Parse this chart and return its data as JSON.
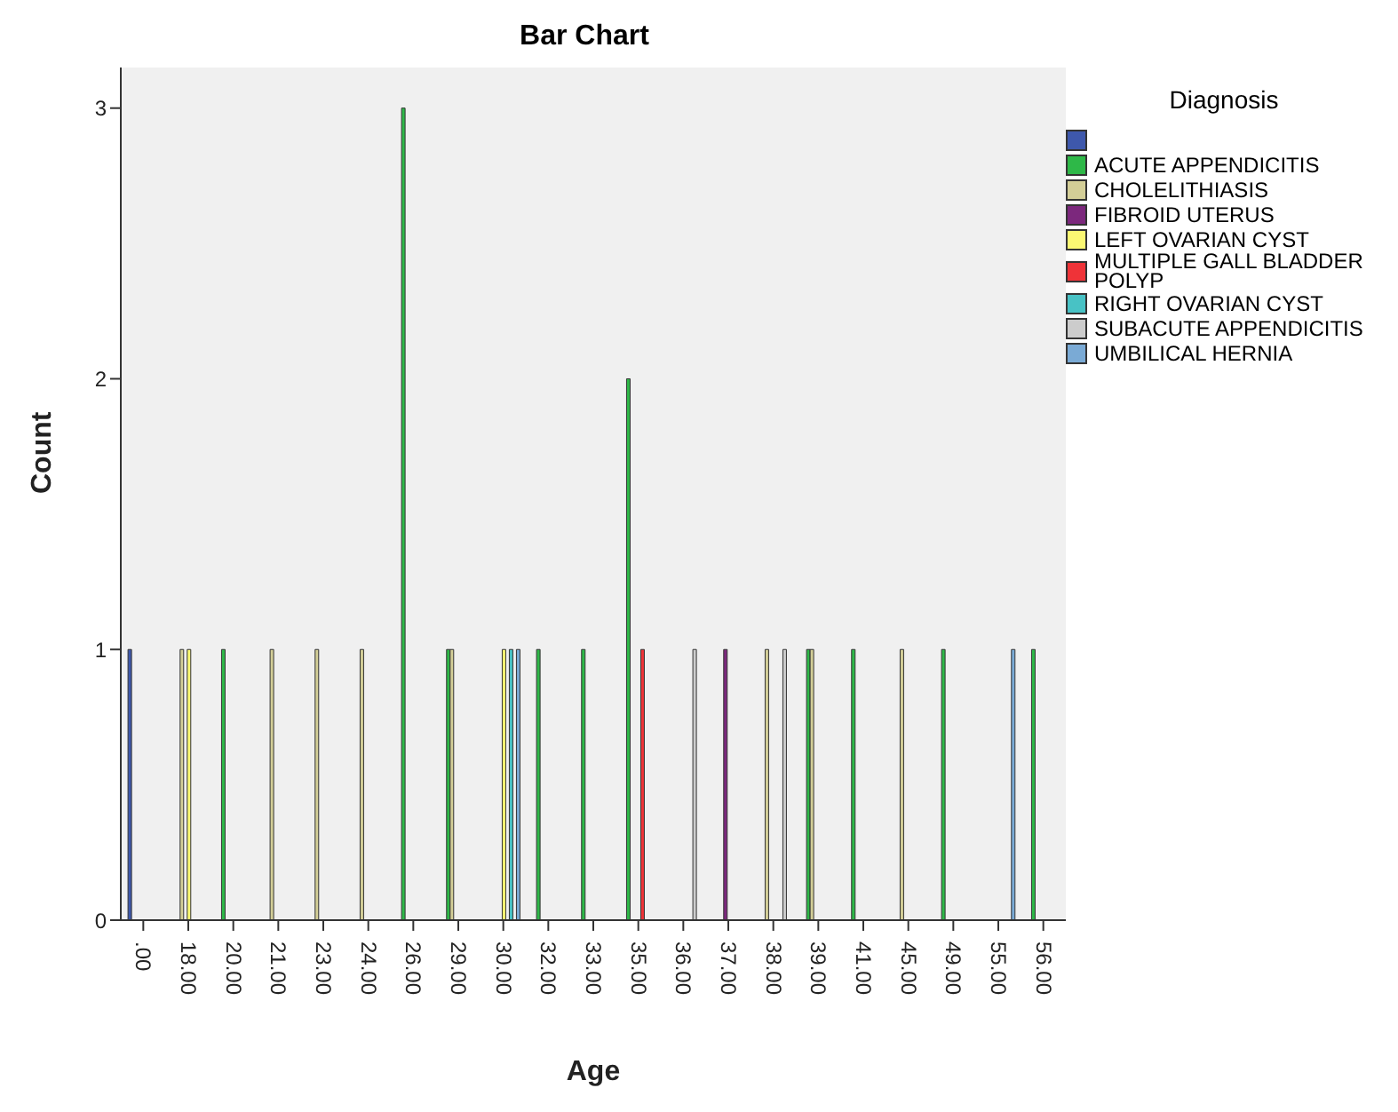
{
  "chart_data": {
    "type": "bar",
    "title": "Bar Chart",
    "xlabel": "Age",
    "ylabel": "Count",
    "legend_title": "Diagnosis",
    "legend": "right",
    "grid": false,
    "categories": [
      ".00",
      "18.00",
      "20.00",
      "21.00",
      "23.00",
      "24.00",
      "26.00",
      "29.00",
      "30.00",
      "32.00",
      "33.00",
      "35.00",
      "36.00",
      "37.00",
      "38.00",
      "39.00",
      "41.00",
      "45.00",
      "49.00",
      "55.00",
      "56.00"
    ],
    "ylim": [
      0,
      3.15
    ],
    "yticks": [
      0,
      1,
      2,
      3
    ],
    "series": [
      {
        "color": "#3e58ac",
        "values": [
          1,
          0,
          0,
          0,
          0,
          0,
          0,
          0,
          0,
          0,
          0,
          0,
          0,
          0,
          0,
          0,
          0,
          0,
          0,
          0,
          0
        ]
      },
      {
        "name": "ACUTE APPENDICITIS",
        "color": "#2eb848",
        "values": [
          0,
          0,
          1,
          0,
          0,
          0,
          3,
          1,
          0,
          1,
          1,
          2,
          0,
          0,
          0,
          1,
          1,
          0,
          1,
          0,
          1
        ]
      },
      {
        "name": "CHOLELITHIASIS",
        "color": "#d3ce97",
        "values": [
          0,
          1,
          0,
          1,
          1,
          1,
          0,
          1,
          0,
          0,
          0,
          0,
          0,
          0,
          1,
          1,
          0,
          1,
          0,
          0,
          0
        ]
      },
      {
        "name": "FIBROID UTERUS",
        "color": "#7c287d",
        "values": [
          0,
          0,
          0,
          0,
          0,
          0,
          0,
          0,
          0,
          0,
          0,
          0,
          0,
          1,
          0,
          0,
          0,
          0,
          0,
          0,
          0
        ]
      },
      {
        "name": "LEFT OVARIAN CYST",
        "color": "#fbf873",
        "values": [
          0,
          1,
          0,
          0,
          0,
          0,
          0,
          0,
          1,
          0,
          0,
          0,
          0,
          0,
          0,
          0,
          0,
          0,
          0,
          0,
          0
        ]
      },
      {
        "name": "MULTIPLE GALL BLADDER POLYP",
        "color": "#ef3338",
        "values": [
          0,
          0,
          0,
          0,
          0,
          0,
          0,
          0,
          0,
          0,
          0,
          1,
          0,
          0,
          0,
          0,
          0,
          0,
          0,
          0,
          0
        ]
      },
      {
        "name": "RIGHT OVARIAN CYST",
        "color": "#48c2c5",
        "values": [
          0,
          0,
          0,
          0,
          0,
          0,
          0,
          0,
          1,
          0,
          0,
          0,
          0,
          0,
          0,
          0,
          0,
          0,
          0,
          0,
          0
        ]
      },
      {
        "name": "SUBACUTE APPENDICITIS",
        "color": "#cccccc",
        "values": [
          0,
          0,
          0,
          0,
          0,
          0,
          0,
          0,
          0,
          0,
          0,
          0,
          1,
          0,
          1,
          0,
          0,
          0,
          0,
          0,
          0
        ]
      },
      {
        "name": "UMBILICAL HERNIA",
        "color": "#7aaad5",
        "values": [
          0,
          0,
          0,
          0,
          0,
          0,
          0,
          0,
          1,
          0,
          0,
          0,
          0,
          0,
          0,
          0,
          0,
          0,
          0,
          1,
          0
        ]
      }
    ]
  }
}
